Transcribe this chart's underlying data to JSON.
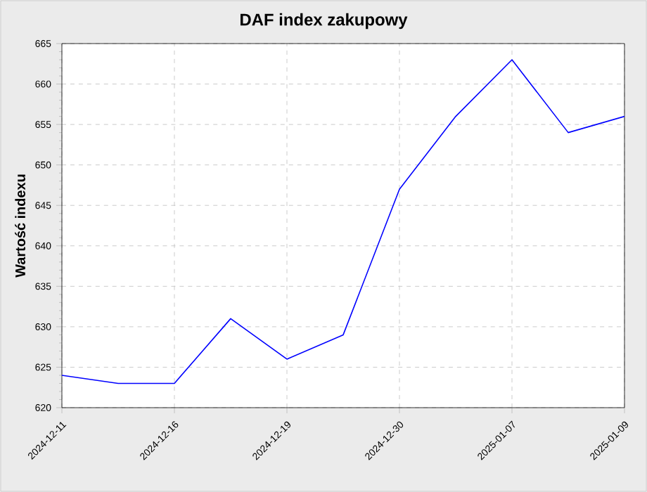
{
  "chart_data": {
    "type": "line",
    "title": "DAF index zakupowy",
    "ylabel": "Wartość indexu",
    "categories": [
      "2024-12-11",
      null,
      "2024-12-16",
      null,
      "2024-12-19",
      null,
      "2024-12-30",
      null,
      "2025-01-07",
      null,
      "2025-01-09"
    ],
    "series": [
      {
        "color": "#0000ff",
        "values": [
          624,
          623,
          623,
          631,
          626,
          629,
          647,
          656,
          663,
          654,
          656
        ]
      }
    ],
    "ylim": [
      620,
      665
    ],
    "yticks": [
      620,
      625,
      630,
      635,
      640,
      645,
      650,
      655,
      660,
      665
    ],
    "grid": true
  }
}
